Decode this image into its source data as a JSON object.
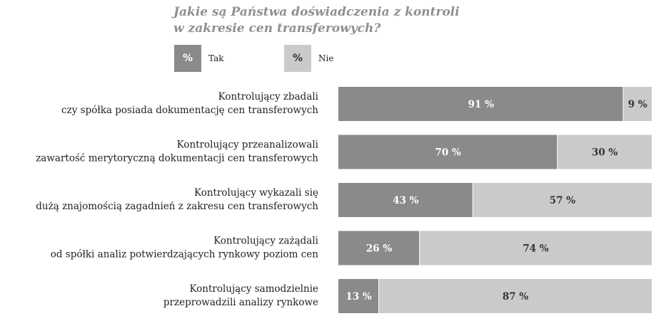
{
  "colors": {
    "tak": "#8a8a8a",
    "nie": "#cacaca",
    "tak_text": "#ffffff",
    "nie_text": "#333333"
  },
  "legend": {
    "tak": {
      "symbol": "%",
      "label": "Tak"
    },
    "nie": {
      "symbol": "%",
      "label": "Nie"
    }
  },
  "chart_data": {
    "type": "bar",
    "orientation": "horizontal",
    "stacked": true,
    "title": "Jakie są Państwa doświadczenia z kontroli w zakresie cen transferowych?",
    "title_lines": [
      "Jakie są Państwa doświadczenia z kontroli",
      "w zakresie cen transferowych?"
    ],
    "xlim": [
      0,
      100
    ],
    "unit": "%",
    "legend_placement": "top-left",
    "categories": [
      {
        "lines": [
          "Kontrolujący zbadali",
          "czy spółka posiada dokumentację cen transferowych"
        ]
      },
      {
        "lines": [
          "Kontrolujący przeanalizowali",
          "zawartość merytoryczną dokumentacji cen transferowych"
        ]
      },
      {
        "lines": [
          "Kontrolujący wykazali się",
          "dużą znajomością zagadnień z zakresu cen transferowych"
        ]
      },
      {
        "lines": [
          "Kontrolujący zażądali",
          "od spółki analiz potwierdzających rynkowy poziom cen"
        ]
      },
      {
        "lines": [
          "Kontrolujący samodzielnie",
          "przeprowadzili analizy rynkowe"
        ]
      }
    ],
    "series": [
      {
        "name": "Tak",
        "values": [
          91,
          70,
          43,
          26,
          13
        ],
        "labels": [
          "91 %",
          "70 %",
          "43 %",
          "26 %",
          "13 %"
        ]
      },
      {
        "name": "Nie",
        "values": [
          9,
          30,
          57,
          74,
          87
        ],
        "labels": [
          "9 %",
          "30 %",
          "57 %",
          "74 %",
          "87 %"
        ]
      }
    ]
  }
}
